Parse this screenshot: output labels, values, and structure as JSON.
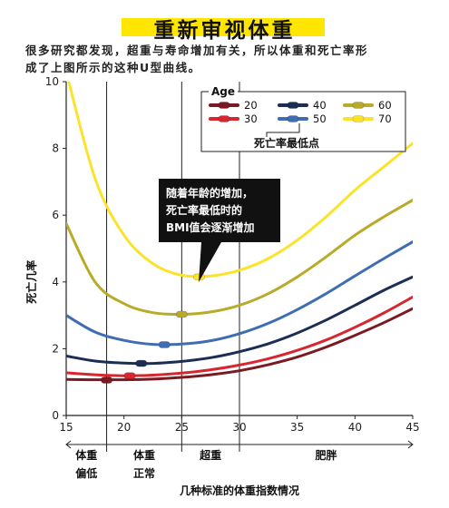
{
  "header": {
    "title": "重新审视体重",
    "subtitle_line1": "很多研究都发现，超重与寿命增加有关，所以体重和死亡率形",
    "subtitle_line2": "成了上图所示的这种U型曲线。"
  },
  "chart_data": {
    "type": "line",
    "xlabel": "几种标准的体重指数情况",
    "ylabel": "死亡几率",
    "xlim": [
      15,
      45
    ],
    "ylim": [
      0,
      10
    ],
    "x_ticks": [
      15,
      20,
      25,
      30,
      35,
      40,
      45
    ],
    "y_ticks": [
      0,
      2,
      4,
      6,
      8,
      10
    ],
    "x_tick_labels": [
      "15",
      "20",
      "25",
      "30",
      "35",
      "40",
      "45"
    ],
    "y_tick_labels": [
      "0",
      "2",
      "4",
      "6",
      "8",
      "10"
    ],
    "grid": false,
    "reference_lines_x": [
      18.5,
      25,
      30
    ],
    "legend": {
      "title": "Age",
      "placement": "top-right",
      "min_marker_label": "死亡率最低点"
    },
    "series": [
      {
        "name": "20",
        "color": "#7a1a22",
        "min_bmi": 18.5,
        "min_value": 1.06,
        "x": [
          15,
          17.5,
          20,
          22.5,
          25,
          27.5,
          30,
          32.5,
          35,
          37.5,
          40,
          42.5,
          45
        ],
        "values": [
          1.08,
          1.07,
          1.07,
          1.09,
          1.14,
          1.22,
          1.34,
          1.52,
          1.75,
          2.05,
          2.4,
          2.78,
          3.2
        ]
      },
      {
        "name": "30",
        "color": "#d7262f",
        "min_bmi": 20.5,
        "min_value": 1.19,
        "x": [
          15,
          17.5,
          20,
          22.5,
          25,
          27.5,
          30,
          32.5,
          35,
          37.5,
          40,
          42.5,
          45
        ],
        "values": [
          1.28,
          1.22,
          1.19,
          1.21,
          1.27,
          1.37,
          1.51,
          1.7,
          1.95,
          2.26,
          2.64,
          3.07,
          3.55
        ]
      },
      {
        "name": "40",
        "color": "#1d2e55",
        "min_bmi": 21.5,
        "min_value": 1.56,
        "x": [
          15,
          17.5,
          20,
          22.5,
          25,
          27.5,
          30,
          32.5,
          35,
          37.5,
          40,
          42.5,
          45
        ],
        "values": [
          1.78,
          1.63,
          1.57,
          1.56,
          1.62,
          1.73,
          1.91,
          2.15,
          2.47,
          2.86,
          3.3,
          3.75,
          4.15
        ]
      },
      {
        "name": "50",
        "color": "#3f6db1",
        "min_bmi": 23.5,
        "min_value": 2.12,
        "x": [
          15,
          17.5,
          20,
          22.5,
          25,
          27.5,
          30,
          32.5,
          35,
          37.5,
          40,
          42.5,
          45
        ],
        "values": [
          3.0,
          2.5,
          2.25,
          2.13,
          2.14,
          2.24,
          2.45,
          2.76,
          3.17,
          3.65,
          4.18,
          4.7,
          5.2
        ]
      },
      {
        "name": "60",
        "color": "#b9ab2a",
        "min_bmi": 25,
        "min_value": 3.03,
        "x": [
          15,
          17.5,
          20,
          22.5,
          25,
          27.5,
          30,
          32.5,
          35,
          37.5,
          40,
          42.5,
          45
        ],
        "values": [
          5.75,
          4.0,
          3.35,
          3.08,
          3.03,
          3.1,
          3.3,
          3.65,
          4.15,
          4.75,
          5.4,
          5.95,
          6.45
        ]
      },
      {
        "name": "70",
        "color": "#fbe32c",
        "min_bmi": 26.5,
        "min_value": 4.15,
        "x": [
          15,
          17.5,
          20,
          22.5,
          25,
          27.5,
          30,
          32.5,
          35,
          37.5,
          40,
          42.5,
          45
        ],
        "values": [
          10.3,
          7.1,
          5.4,
          4.55,
          4.2,
          4.18,
          4.35,
          4.7,
          5.25,
          5.95,
          6.75,
          7.45,
          8.15
        ]
      }
    ],
    "annotation": {
      "lines": [
        "随着年龄的增加，",
        "死亡率最低时的",
        "BMI值会逐渐增加"
      ]
    },
    "categories": [
      {
        "lines": [
          "体重",
          "偏低"
        ],
        "from": 15,
        "to": 18.5
      },
      {
        "lines": [
          "体重",
          "正常"
        ],
        "from": 18.5,
        "to": 25
      },
      {
        "lines": [
          "超重"
        ],
        "from": 25,
        "to": 30
      },
      {
        "lines": [
          "肥胖"
        ],
        "from": 30,
        "to": 45
      }
    ]
  }
}
